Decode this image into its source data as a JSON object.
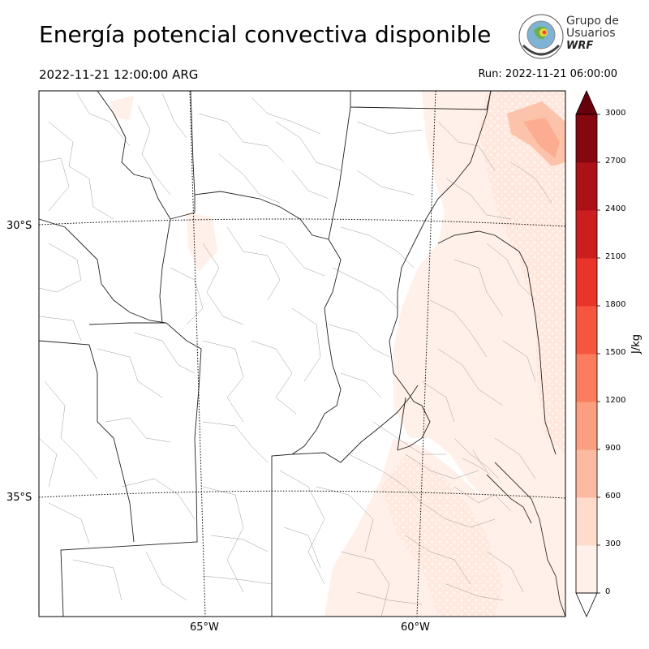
{
  "header": {
    "title": "Energía potencial convectiva disponible",
    "valid_time": "2022-11-21 12:00:00 ARG",
    "run_time": "Run: 2022-11-21 06:00:00"
  },
  "logo": {
    "line1": "Grupo de",
    "line2": "Usuarios",
    "line3": "WRF"
  },
  "map": {
    "lat_labels": [
      "30°S",
      "35°S"
    ],
    "lon_labels": [
      "65°W",
      "60°W"
    ]
  },
  "colorbar": {
    "unit": "J/kg",
    "levels": [
      0,
      300,
      600,
      900,
      1200,
      1500,
      1800,
      2100,
      2400,
      2700,
      3000
    ],
    "tick_labels": [
      "0",
      "300",
      "600",
      "900",
      "1200",
      "1500",
      "1800",
      "2100",
      "2400",
      "2700",
      "3000"
    ],
    "colors": [
      "#fff0e9",
      "#fedbcc",
      "#fcbba1",
      "#fc9e80",
      "#fb7d5d",
      "#f5563d",
      "#ea3429",
      "#cc1e1f",
      "#ac1117",
      "#85080f",
      "#67000d"
    ]
  }
}
